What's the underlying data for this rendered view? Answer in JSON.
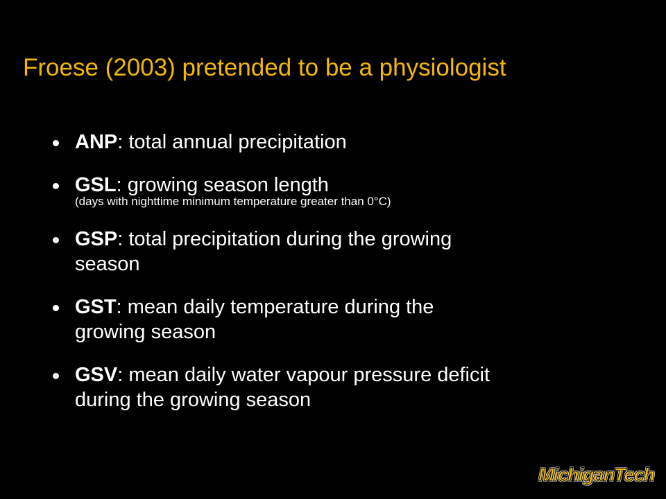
{
  "header": {
    "title": "Froese (2003) pretended to be a physiologist"
  },
  "bullets": [
    {
      "term": "ANP",
      "lines": [
        ": total annual precipitation"
      ]
    },
    {
      "term": "GSL",
      "lines": [
        ": growing season length"
      ],
      "note": "(days with nighttime minimum temperature greater than 0°C)"
    },
    {
      "term": "GSP",
      "lines": [
        ": total precipitation during the growing",
        "season"
      ]
    },
    {
      "term": "GST",
      "lines": [
        ": mean daily temperature during the",
        "growing season"
      ]
    },
    {
      "term": "GSV",
      "lines": [
        ": mean daily water vapour pressure deficit",
        "during the growing season"
      ]
    }
  ],
  "footer": {
    "logo": "MichiganTech"
  }
}
